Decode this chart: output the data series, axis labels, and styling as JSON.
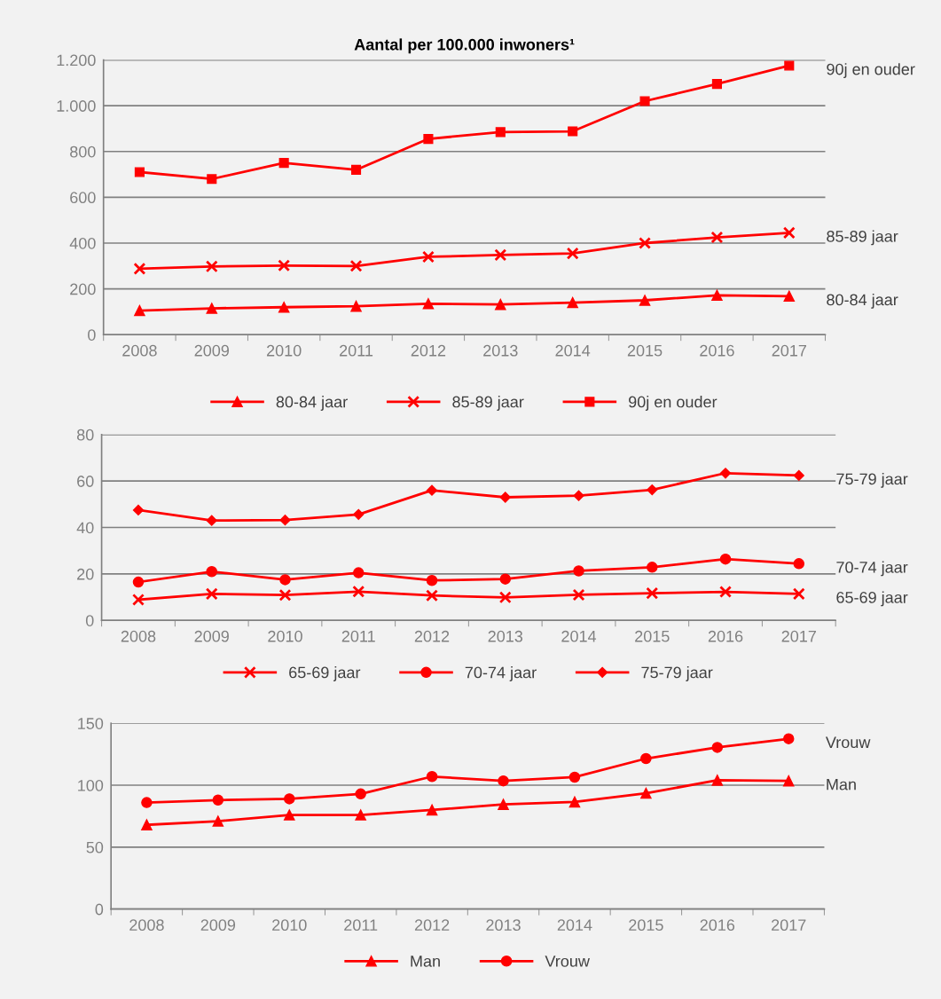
{
  "chart_data": [
    {
      "type": "line",
      "title": "Aantal per 100.000 inwoners¹",
      "categories": [
        "2008",
        "2009",
        "2010",
        "2011",
        "2012",
        "2013",
        "2014",
        "2015",
        "2016",
        "2017"
      ],
      "series": [
        {
          "name": "80-84 jaar",
          "color": "#ff0000",
          "marker": "triangle",
          "values": [
            105,
            115,
            120,
            124,
            135,
            132,
            140,
            150,
            172,
            168
          ]
        },
        {
          "name": "85-89 jaar",
          "color": "#ff0000",
          "marker": "cross",
          "values": [
            288,
            298,
            302,
            300,
            340,
            348,
            355,
            400,
            425,
            445
          ]
        },
        {
          "name": "90j en ouder",
          "color": "#ff0000",
          "marker": "square",
          "values": [
            710,
            680,
            750,
            720,
            855,
            885,
            888,
            1020,
            1095,
            1175
          ]
        }
      ],
      "ylim": [
        0,
        1200
      ],
      "yticks": [
        0,
        200,
        400,
        600,
        800,
        {
          "value": 1000,
          "label": "1.000"
        },
        {
          "value": 1200,
          "label": "1.200"
        }
      ],
      "grid": "y",
      "legend": "bottom",
      "line_style": "solid",
      "annotations": [
        {
          "text": "90j en ouder",
          "x": "2017",
          "y": 1175
        },
        {
          "text": "85-89 jaar",
          "x": "2017",
          "y": 445
        },
        {
          "text": "80-84 jaar",
          "x": "2017",
          "y": 168
        }
      ]
    },
    {
      "type": "line",
      "categories": [
        "2008",
        "2009",
        "2010",
        "2011",
        "2012",
        "2013",
        "2014",
        "2015",
        "2016",
        "2017"
      ],
      "series": [
        {
          "name": "65-69 jaar",
          "color": "#ff0000",
          "marker": "cross",
          "values": [
            8.9,
            11.4,
            10.9,
            12.4,
            10.7,
            9.9,
            11,
            11.7,
            12.3,
            11.4
          ]
        },
        {
          "name": "70-74 jaar",
          "color": "#ff0000",
          "marker": "circle",
          "values": [
            16.5,
            21,
            17.5,
            20.5,
            17.2,
            17.8,
            21.3,
            22.9,
            26.4,
            24.4
          ]
        },
        {
          "name": "75-79 jaar",
          "color": "#ff0000",
          "marker": "diamond",
          "values": [
            47.5,
            43,
            43.2,
            45.6,
            56,
            53,
            53.7,
            56.2,
            63.4,
            62.4
          ]
        }
      ],
      "ylim": [
        0,
        80
      ],
      "yticks": [
        0,
        20,
        40,
        60,
        80
      ],
      "grid": "y",
      "legend": "bottom",
      "line_style": "solid",
      "annotations": [
        {
          "text": "75-79 jaar",
          "x": "2017",
          "y": 62.4
        },
        {
          "text": "70-74 jaar",
          "x": "2017",
          "y": 24.4
        },
        {
          "text": "65-69 jaar",
          "x": "2017",
          "y": 11.4
        }
      ]
    },
    {
      "type": "line",
      "categories": [
        "2008",
        "2009",
        "2010",
        "2011",
        "2012",
        "2013",
        "2014",
        "2015",
        "2016",
        "2017"
      ],
      "series": [
        {
          "name": "Man",
          "color": "#ff0000",
          "marker": "triangle",
          "values": [
            68,
            71,
            76,
            76,
            80,
            84.5,
            86.5,
            93.5,
            104,
            103.5
          ]
        },
        {
          "name": "Vrouw",
          "color": "#ff0000",
          "marker": "circle",
          "values": [
            86,
            88,
            89,
            93,
            107,
            103.5,
            106.5,
            121.5,
            130.5,
            137.5
          ]
        }
      ],
      "ylim": [
        0,
        150
      ],
      "yticks": [
        0,
        50,
        100,
        150
      ],
      "grid": "y",
      "legend": "bottom",
      "line_style": "solid",
      "annotations": [
        {
          "text": "Vrouw",
          "x": "2017",
          "y": 137.5
        },
        {
          "text": "Man",
          "x": "2017",
          "y": 103.5
        }
      ]
    }
  ]
}
